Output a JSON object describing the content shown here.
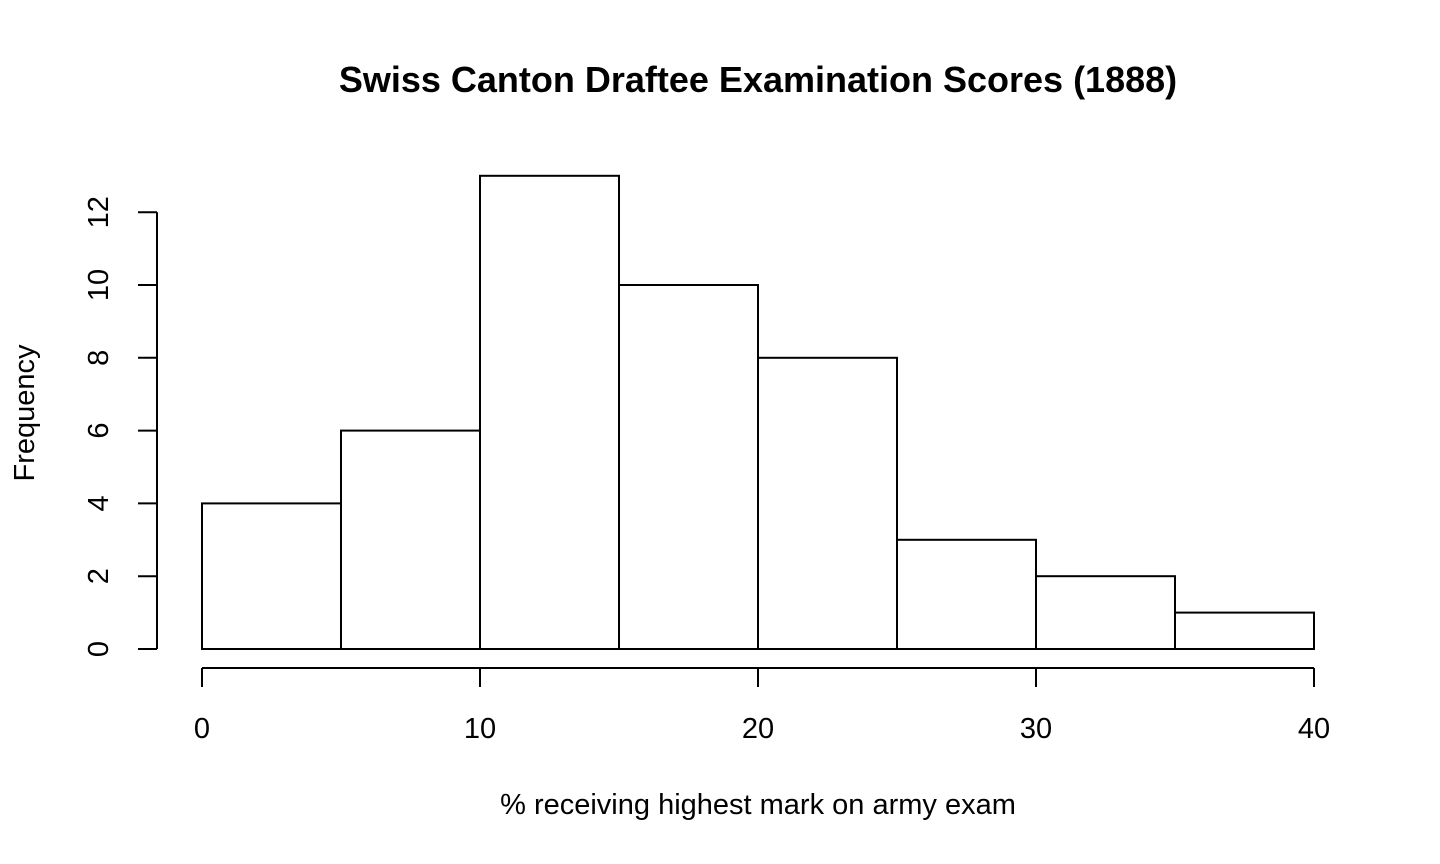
{
  "chart_data": {
    "type": "bar",
    "title": "Swiss Canton Draftee Examination Scores (1888)",
    "xlabel": "% receiving highest mark on army exam",
    "ylabel": "Frequency",
    "bins": [
      {
        "start": 0,
        "end": 5,
        "count": 4
      },
      {
        "start": 5,
        "end": 10,
        "count": 6
      },
      {
        "start": 10,
        "end": 15,
        "count": 13
      },
      {
        "start": 15,
        "end": 20,
        "count": 10
      },
      {
        "start": 20,
        "end": 25,
        "count": 8
      },
      {
        "start": 25,
        "end": 30,
        "count": 3
      },
      {
        "start": 30,
        "end": 35,
        "count": 2
      },
      {
        "start": 35,
        "end": 40,
        "count": 1
      }
    ],
    "xlim": [
      0,
      40
    ],
    "ylim": [
      0,
      13
    ],
    "x_ticks": [
      0,
      10,
      20,
      30,
      40
    ],
    "y_ticks": [
      0,
      2,
      4,
      6,
      8,
      10,
      12
    ],
    "grid": false,
    "legend": "none"
  }
}
